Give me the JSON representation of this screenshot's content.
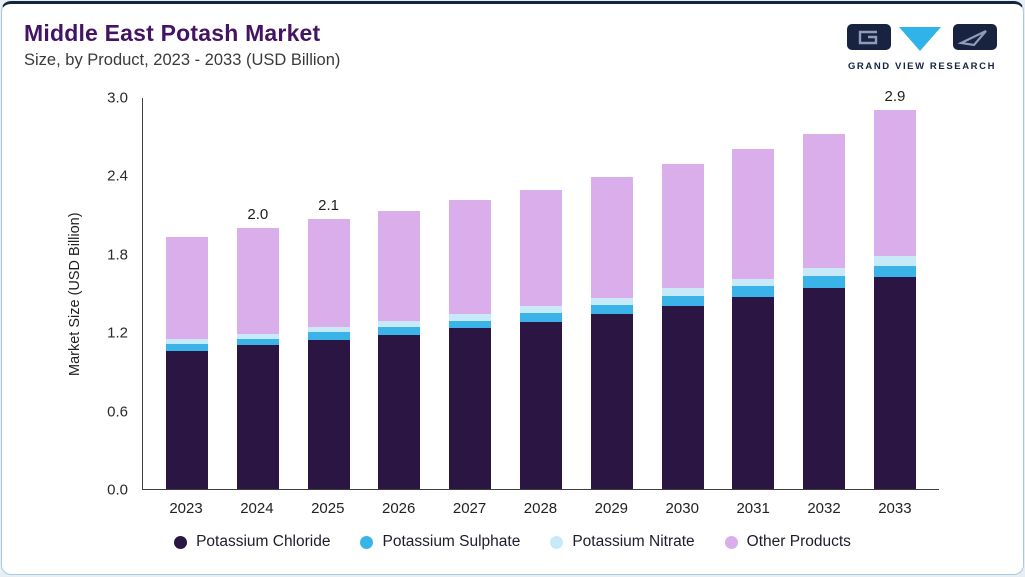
{
  "header": {
    "title": "Middle East Potash Market",
    "subtitle": "Size, by Product, 2023 - 2033 (USD Billion)",
    "brand": "GRAND VIEW RESEARCH"
  },
  "colors": {
    "accent_top_bar": "#14253f",
    "title_purple": "#451364",
    "brand_navy": "#15253f",
    "brand_cyan": "#2fb3e8"
  },
  "chart_data": {
    "type": "bar",
    "stacked": true,
    "title": "Middle East Potash Market",
    "subtitle": "Size, by Product, 2023 - 2033 (USD Billion)",
    "ylabel": "Market Size (USD Billion)",
    "ylim": [
      0,
      3.0
    ],
    "yticks": [
      0.0,
      0.6,
      1.2,
      1.8,
      2.4,
      3.0
    ],
    "grid": false,
    "legend_position": "bottom",
    "categories": [
      "2023",
      "2024",
      "2025",
      "2026",
      "2027",
      "2028",
      "2029",
      "2030",
      "2031",
      "2032",
      "2033"
    ],
    "series": [
      {
        "name": "Potassium Chloride",
        "color": "#2b1542",
        "values": [
          1.06,
          1.1,
          1.14,
          1.18,
          1.23,
          1.28,
          1.34,
          1.4,
          1.47,
          1.54,
          1.62
        ]
      },
      {
        "name": "Potassium Sulphate",
        "color": "#3ab4e8",
        "values": [
          0.05,
          0.05,
          0.06,
          0.06,
          0.06,
          0.07,
          0.07,
          0.08,
          0.08,
          0.09,
          0.09
        ]
      },
      {
        "name": "Potassium Nitrate",
        "color": "#c8e9f8",
        "values": [
          0.04,
          0.04,
          0.04,
          0.05,
          0.05,
          0.05,
          0.05,
          0.06,
          0.06,
          0.06,
          0.07
        ]
      },
      {
        "name": "Other Products",
        "color": "#d9aeea",
        "values": [
          0.78,
          0.81,
          0.83,
          0.84,
          0.87,
          0.89,
          0.93,
          0.95,
          0.99,
          1.03,
          1.12
        ]
      }
    ],
    "totals": [
      1.93,
      2.0,
      2.07,
      2.13,
      2.21,
      2.29,
      2.39,
      2.49,
      2.6,
      2.72,
      2.9
    ],
    "bar_labels": {
      "2024": "2.0",
      "2025": "2.1",
      "2033": "2.9"
    }
  }
}
